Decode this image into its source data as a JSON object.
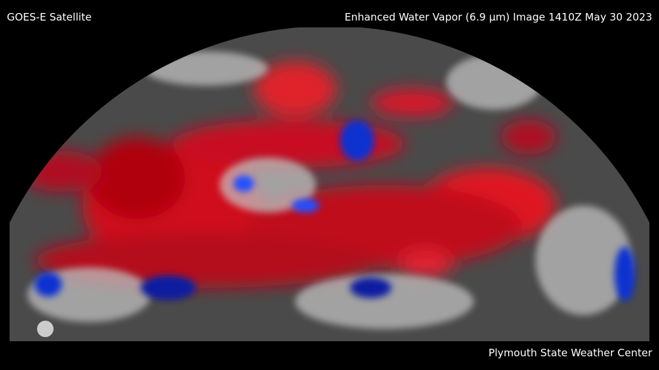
{
  "header": {
    "left": "GOES-E Satellite",
    "right": "Enhanced Water Vapor (6.9 µm) Image 1410Z May 30 2023"
  },
  "footer": {
    "credit": "Plymouth State Weather Center"
  }
}
